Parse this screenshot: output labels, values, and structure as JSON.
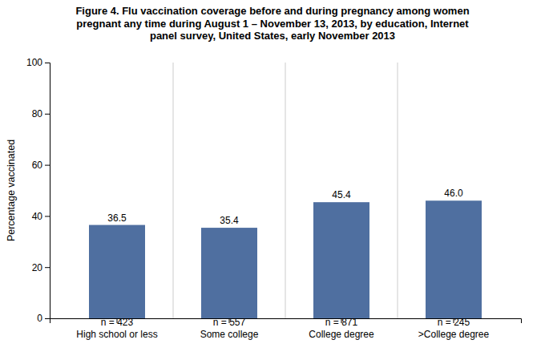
{
  "chart_data": {
    "type": "bar",
    "title": "Figure 4. Flu vaccination coverage before and during pregnancy among women\npregnant any time during August 1 – November 13, 2013, by education, Internet\npanel survey, United States, early November 2013",
    "categories": [
      "High school or less",
      "Some college",
      "College degree",
      ">College degree"
    ],
    "n_labels": [
      "n = 423",
      "n = 557",
      "n = 871",
      "n = 245"
    ],
    "values": [
      36.5,
      35.4,
      45.4,
      46.0
    ],
    "value_labels": [
      "36.5",
      "35.4",
      "45.4",
      "46.0"
    ],
    "data_labels": true,
    "color": "#4f6fa0",
    "ylabel": "Percentage vaccinated",
    "ylim": [
      0,
      100
    ],
    "yticks": [
      0,
      20,
      40,
      60,
      80,
      100
    ],
    "grid": false
  }
}
